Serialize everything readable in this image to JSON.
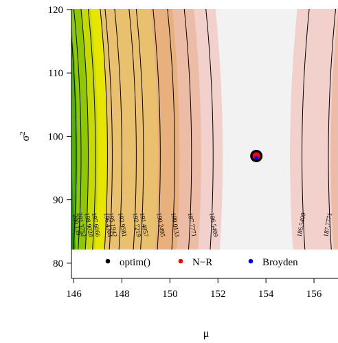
{
  "chart_data": {
    "type": "contour",
    "xlabel": "μ",
    "ylabel_base": "σ",
    "ylabel_sup": "2",
    "xlim": [
      145.9,
      157.0
    ],
    "ylim": [
      77.6,
      120.1
    ],
    "plot_ymin": 79.5,
    "x_ticks": [
      "146",
      "148",
      "150",
      "152",
      "154",
      "156"
    ],
    "y_ticks": [
      "80",
      "90",
      "100",
      "110",
      "120"
    ],
    "fill_colors": [
      "#1b9a00",
      "#4fb300",
      "#8fc800",
      "#c8da00",
      "#e6e600",
      "#e9c06e",
      "#e8b07d",
      "#edbca6",
      "#f2d0cc",
      "#f2f2f2"
    ],
    "contour_levels": [
      {
        "label": "200.139",
        "x": 146.1
      },
      {
        "label": "201.3752",
        "x": 146.3
      },
      {
        "label": "198.9028",
        "x": 146.6
      },
      {
        "label": "197.6666",
        "x": 146.9
      },
      {
        "label": "196.4304",
        "x": 147.4
      },
      {
        "label": "195.1942",
        "x": 147.6
      },
      {
        "label": "193.9581",
        "x": 148.0
      },
      {
        "label": "192.7219",
        "x": 148.6
      },
      {
        "label": "191.4857",
        "x": 148.9
      },
      {
        "label": "190.2495",
        "x": 149.6
      },
      {
        "label": "189.0133",
        "x": 150.2
      },
      {
        "label": "187.7771",
        "x": 150.9
      },
      {
        "label": "186.5409",
        "x": 151.8
      },
      {
        "label": "186.5409",
        "x": 155.5
      },
      {
        "label": "187.7771",
        "x": 156.6
      }
    ],
    "estimate": {
      "mu": 153.6,
      "sigma2": 96.9
    },
    "legend": [
      {
        "label": "optim()",
        "color": "#000000"
      },
      {
        "label": "N−R",
        "color": "#ff0000"
      },
      {
        "label": "Broyden",
        "color": "#0000ff"
      }
    ]
  }
}
